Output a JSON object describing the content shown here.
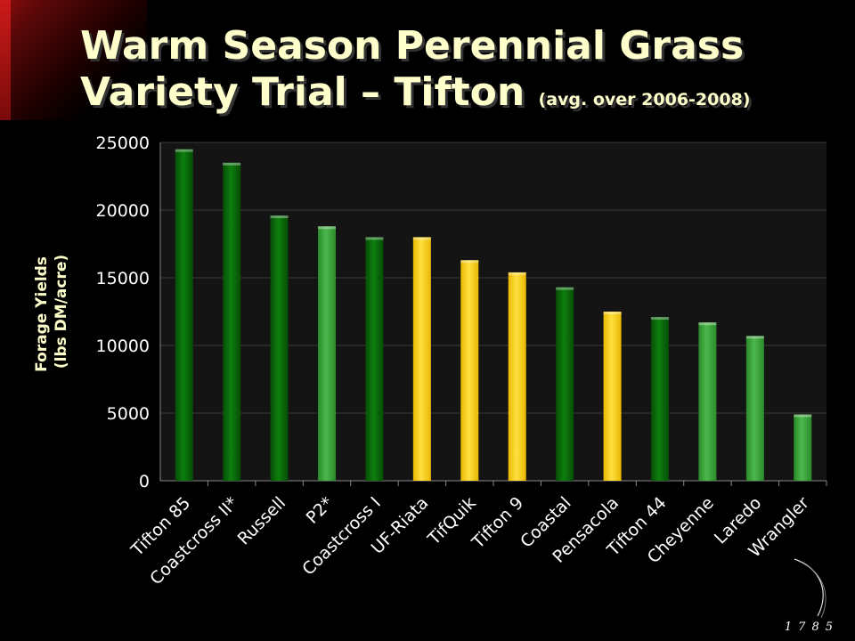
{
  "slide": {
    "title_main": "Warm Season Perennial Grass Variety Trial – Tifton",
    "title_note": "(avg. over 2006-2008)",
    "seal_year": "1785"
  },
  "colors": {
    "dark_green": "#0a6e0a",
    "light_green": "#3ea63e",
    "yellow": "#ffd21a",
    "title": "#ffffcc",
    "plot_bg": "#141414"
  },
  "chart_data": {
    "type": "bar",
    "title": "",
    "xlabel": "",
    "ylabel": "Forage Yields (lbs DM/acre)",
    "ylabel_lines": [
      "Forage Yields",
      "(lbs DM/acre)"
    ],
    "ylim": [
      0,
      25000
    ],
    "yticks": [
      0,
      5000,
      10000,
      15000,
      20000,
      25000
    ],
    "grid": true,
    "categories": [
      "Tifton 85",
      "Coastcross II*",
      "Russell",
      "P2*",
      "Coastcross I",
      "UF-Riata",
      "TifQuik",
      "Tifton 9",
      "Coastal",
      "Pensacola",
      "Tifton 44",
      "Cheyenne",
      "Laredo",
      "Wrangler"
    ],
    "values": [
      24500,
      23500,
      19600,
      18800,
      18000,
      18000,
      16300,
      15400,
      14300,
      12500,
      12100,
      11700,
      10700,
      4900
    ],
    "bar_colors": [
      "dark_green",
      "dark_green",
      "dark_green",
      "light_green",
      "dark_green",
      "yellow",
      "yellow",
      "yellow",
      "dark_green",
      "yellow",
      "dark_green",
      "light_green",
      "light_green",
      "light_green"
    ]
  }
}
